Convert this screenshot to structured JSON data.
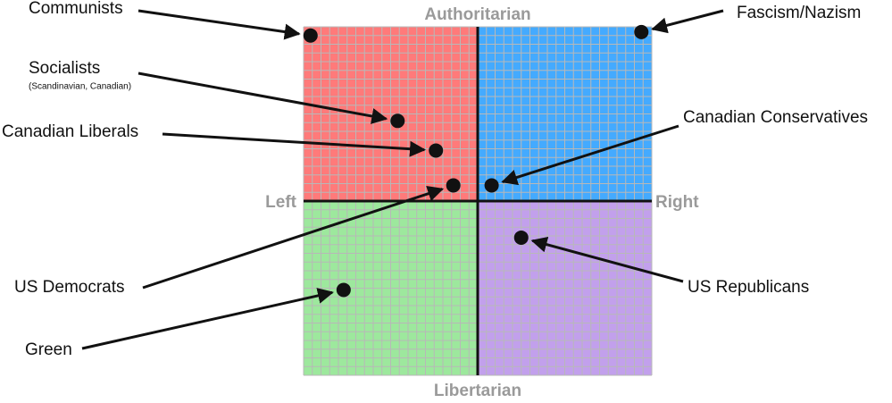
{
  "chart_data": {
    "type": "scatter",
    "axis_labels": {
      "top": "Authoritarian",
      "bottom": "Libertarian",
      "left": "Left",
      "right": "Right"
    },
    "xlim": [
      -10,
      10
    ],
    "ylim": [
      -10,
      10
    ],
    "grid": true,
    "quadrant_colors": [
      "#ff7a7a",
      "#44aaff",
      "#9de89d",
      "#c2a0ec"
    ],
    "point_color": "#111111",
    "points": [
      {
        "label": "Communists",
        "x": -9.6,
        "y": 9.5
      },
      {
        "label": "Fascism/Nazism",
        "x": 9.4,
        "y": 9.7
      },
      {
        "label": "Socialists",
        "sublabel": "(Scandinavian, Canadian)",
        "x": -4.6,
        "y": 4.6
      },
      {
        "label": "Canadian Liberals",
        "x": -2.4,
        "y": 2.9
      },
      {
        "label": "Canadian Conservatives",
        "x": 0.8,
        "y": 0.9
      },
      {
        "label": "US Democrats",
        "x": -1.4,
        "y": 0.9
      },
      {
        "label": "US Republicans",
        "x": 2.5,
        "y": -2.1
      },
      {
        "label": "Green",
        "x": -7.7,
        "y": -5.1
      }
    ]
  }
}
